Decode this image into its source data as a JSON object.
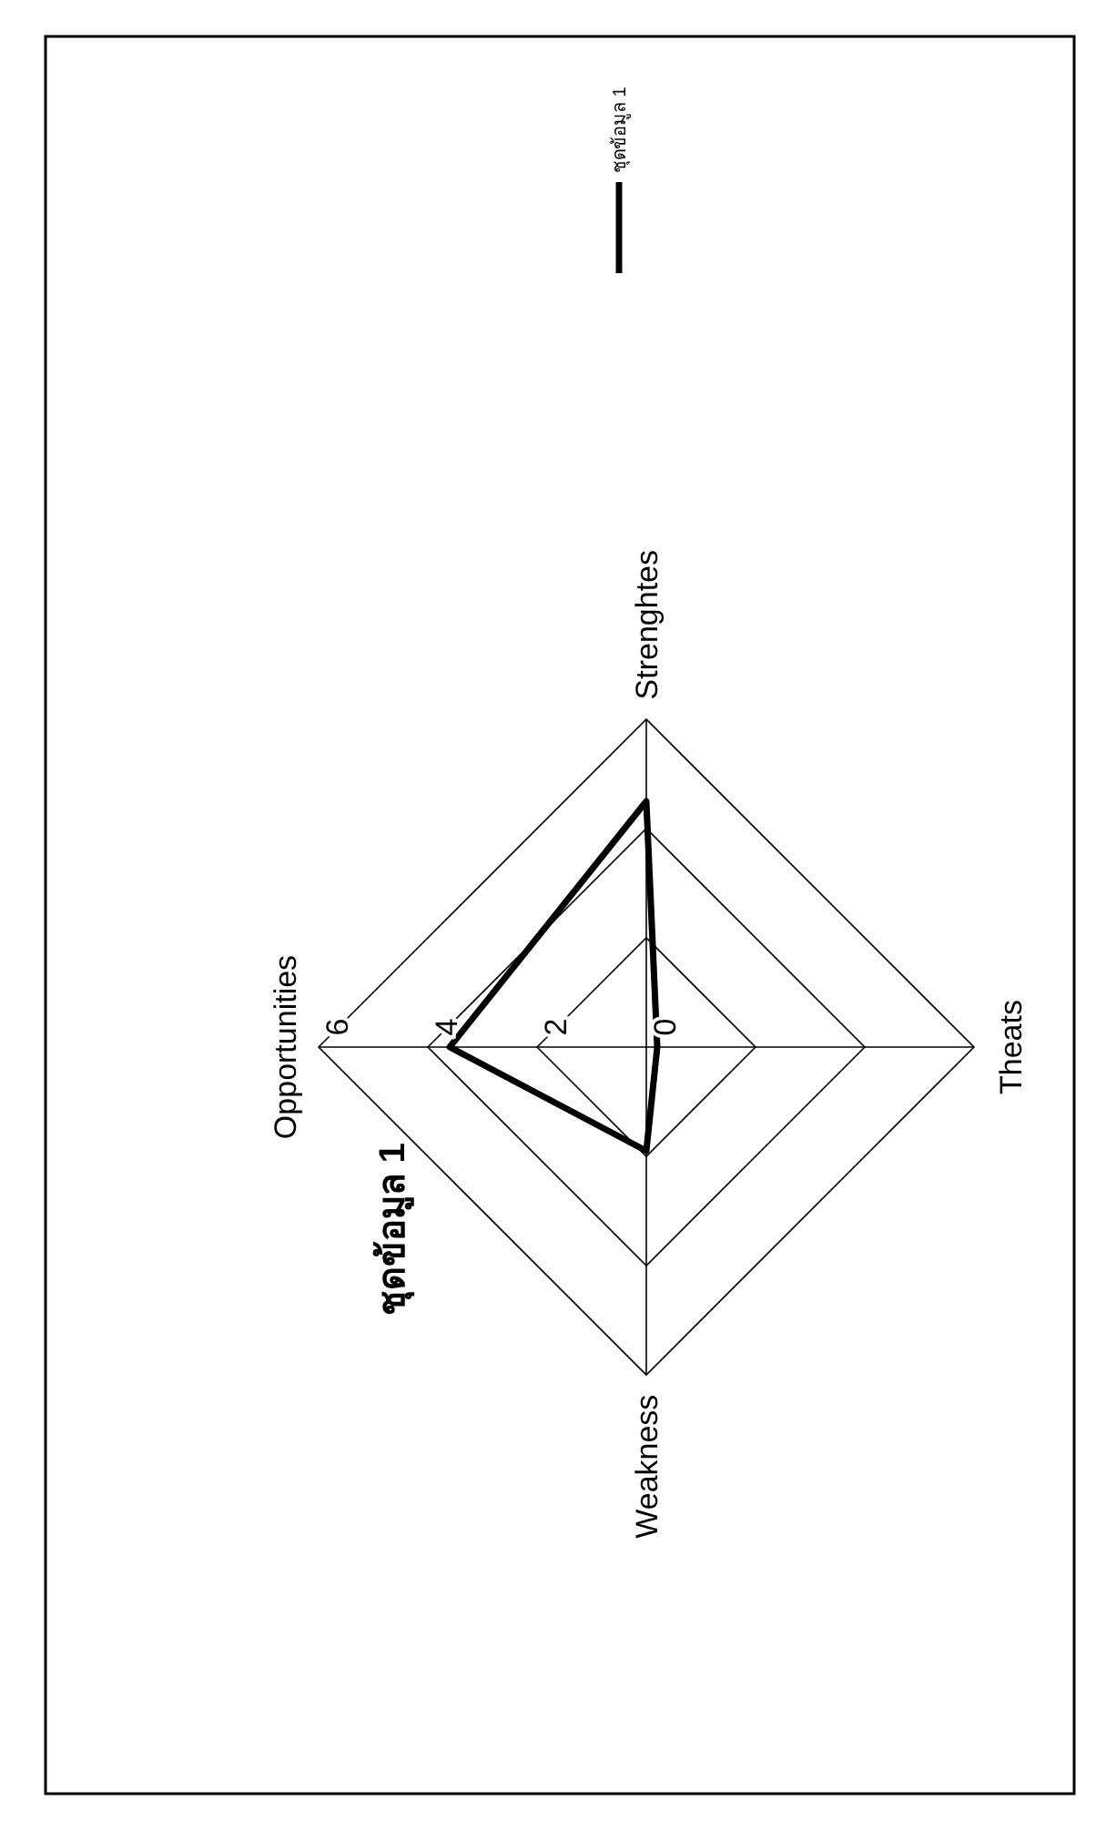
{
  "chart_data": {
    "type": "radar",
    "title": "ชุดข้อมูล 1",
    "categories": [
      "Opportunities",
      "Strenghtes",
      "Theats",
      "Weakness"
    ],
    "series": [
      {
        "name": "ชุดข้อมูล 1",
        "color": "#000000",
        "values": [
          3.6,
          4.5,
          0.2,
          1.9
        ]
      }
    ],
    "ylim": [
      0,
      6
    ],
    "yticks": [
      0,
      2,
      4,
      6
    ],
    "grid": true,
    "legend": "top"
  }
}
